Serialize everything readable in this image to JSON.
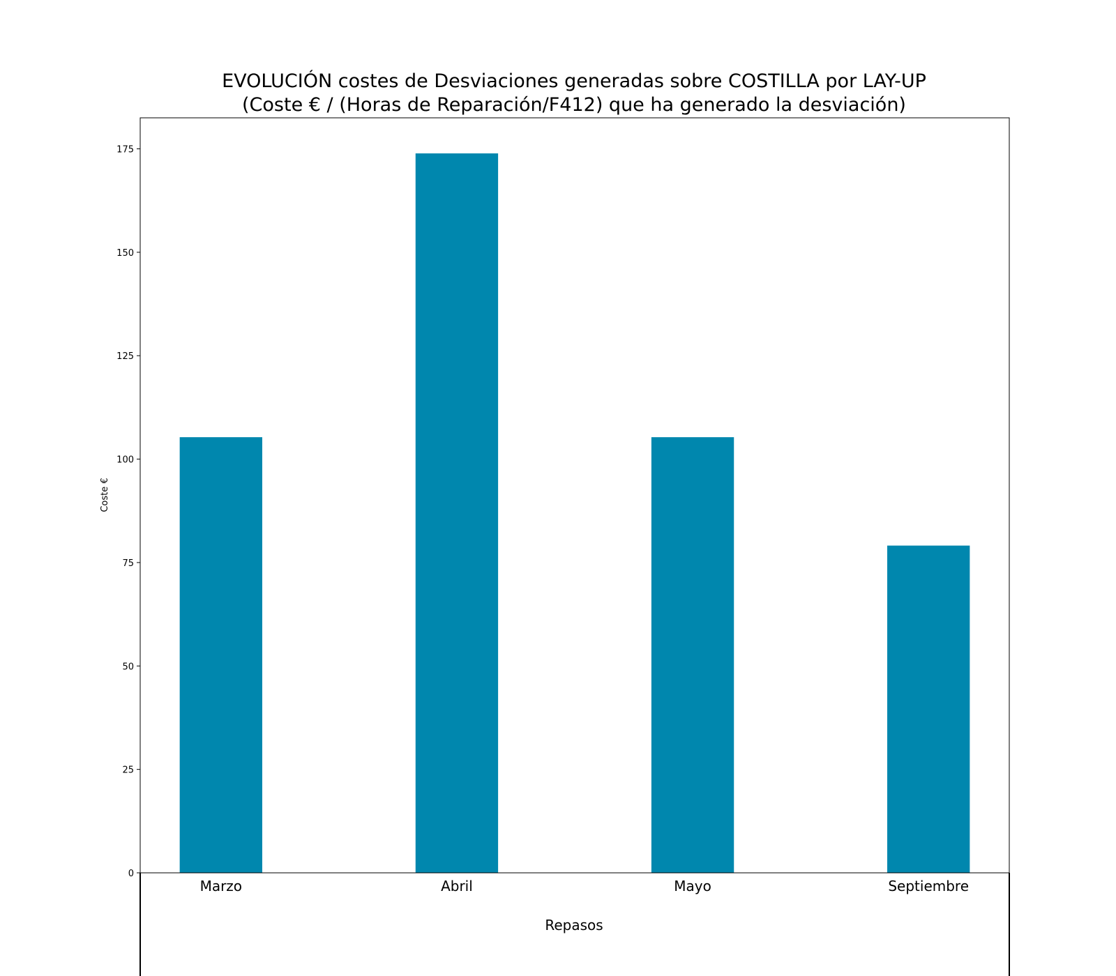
{
  "chart_data": {
    "type": "bar",
    "title_lines": [
      "EVOLUCIÓN costes de Desviaciones  generadas  sobre COSTILLA por LAY-UP",
      "(Coste € / (Horas de Reparación/F412) que ha generado la desviación)"
    ],
    "categories": [
      "Marzo",
      "Abril",
      "Mayo",
      "Septiembre"
    ],
    "values": [
      105.3,
      173.9,
      105.3,
      79.1
    ],
    "xlabel": "Repasos",
    "ylabel": "Coste €",
    "ylim": [
      0,
      182.5
    ],
    "yticks": [
      0,
      25,
      50,
      75,
      100,
      125,
      150,
      175
    ],
    "bar_color": "#0087ae",
    "grid": false,
    "legend": "none"
  }
}
